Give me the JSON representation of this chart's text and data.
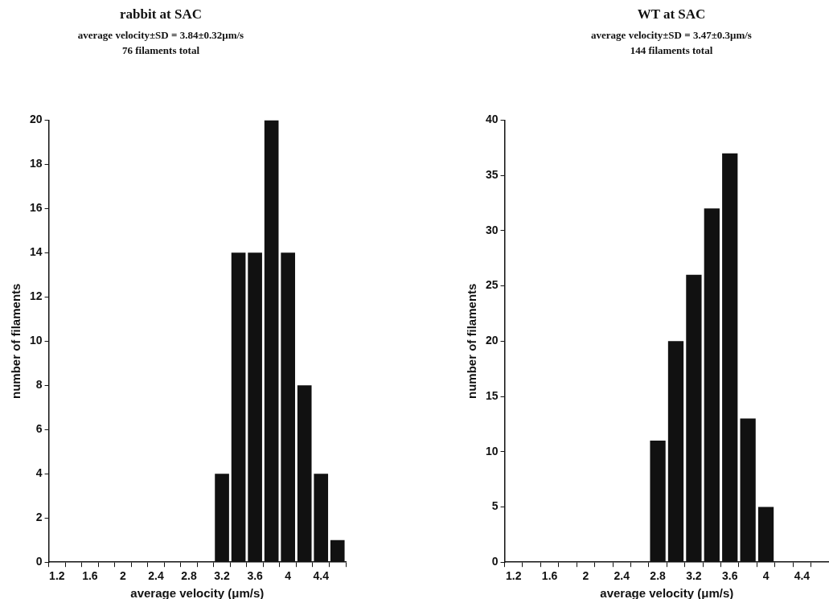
{
  "chart_data": [
    {
      "type": "bar",
      "title": "rabbit at SAC",
      "subtitle": "average velocity±SD = 3.84±0.32μm/s\n76 filaments total",
      "xlabel": "average velocity (μm/s)",
      "ylabel": "number of filaments",
      "color": "#111111",
      "categories": [
        "1.2",
        null,
        "1.6",
        null,
        "2",
        null,
        "2.4",
        null,
        "2.8",
        null,
        "3.2",
        null,
        "3.6",
        null,
        "4",
        null,
        "4.4",
        null
      ],
      "values": [
        0,
        0,
        0,
        0,
        0,
        0,
        0,
        0,
        0,
        0,
        4,
        14,
        14,
        20,
        14,
        8,
        4,
        1
      ],
      "ylim": [
        0,
        20
      ],
      "yticks": [
        0,
        2,
        4,
        6,
        8,
        10,
        12,
        14,
        16,
        18,
        20
      ]
    },
    {
      "type": "bar",
      "title": "WT at SAC",
      "subtitle": "average velocity±SD = 3.47±0.3μm/s\n144 filaments total",
      "xlabel": "average velocity (μm/s)",
      "ylabel": "number of filaments",
      "color": "#111111",
      "categories": [
        "1.2",
        null,
        "1.6",
        null,
        "2",
        null,
        "2.4",
        null,
        "2.8",
        null,
        "3.2",
        null,
        "3.6",
        null,
        "4",
        null,
        "4.4",
        null
      ],
      "values": [
        0,
        0,
        0,
        0,
        0,
        0,
        0,
        0,
        11,
        20,
        26,
        32,
        37,
        13,
        5,
        0,
        0,
        0
      ],
      "ylim": [
        0,
        40
      ],
      "yticks": [
        0,
        5,
        10,
        15,
        20,
        25,
        30,
        35,
        40
      ]
    }
  ]
}
